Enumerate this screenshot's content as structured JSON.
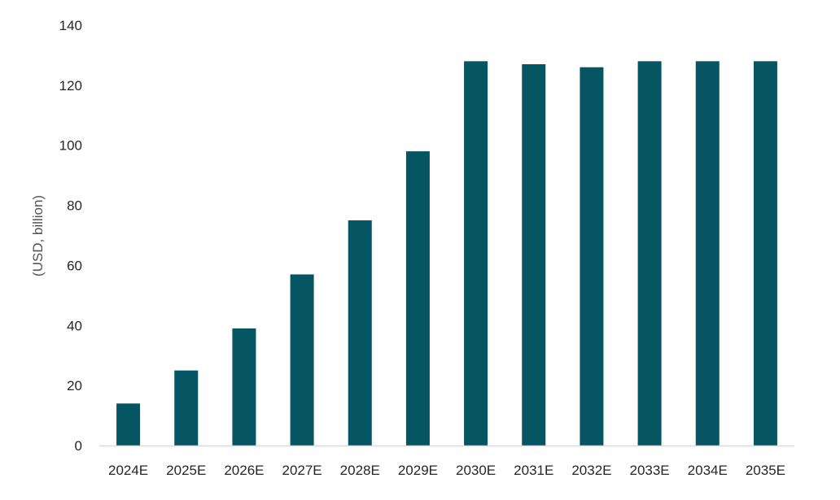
{
  "chart_data": {
    "type": "bar",
    "title": "",
    "xlabel": "",
    "ylabel": "(USD, billion)",
    "categories": [
      "2024E",
      "2025E",
      "2026E",
      "2027E",
      "2028E",
      "2029E",
      "2030E",
      "2031E",
      "2032E",
      "2033E",
      "2034E",
      "2035E"
    ],
    "series": [
      {
        "values": [
          14,
          25,
          39,
          57,
          75,
          98,
          128,
          127,
          126,
          128,
          128,
          128
        ],
        "color": "#065562"
      }
    ],
    "ylim": [
      0,
      140
    ],
    "yticks": [
      0,
      20,
      40,
      60,
      80,
      100,
      120,
      140
    ],
    "grid": false,
    "legend": "none"
  }
}
